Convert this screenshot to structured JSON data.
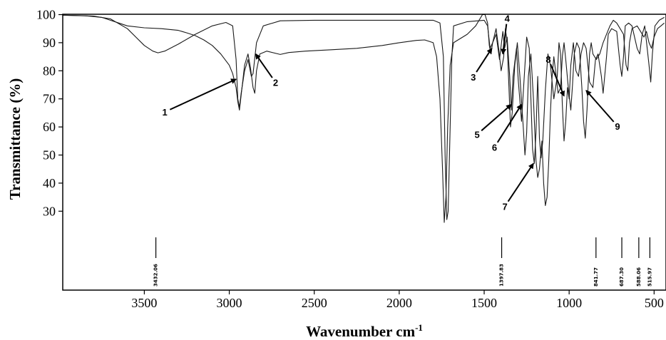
{
  "chart_data": {
    "type": "line",
    "title": "",
    "xlabel": "Wavenumber cm",
    "xlabel_sup": "-1",
    "ylabel": "Transmittance (%)",
    "xlim": [
      3980,
      430
    ],
    "ylim": [
      0,
      100
    ],
    "x_ticks": [
      3500,
      3000,
      2500,
      2000,
      1500,
      1000,
      500
    ],
    "y_ticks": [
      30,
      40,
      50,
      60,
      70,
      80,
      90,
      100
    ],
    "series": [
      {
        "values": [
          [
            3980,
            99.8
          ],
          [
            3800,
            99.5
          ],
          [
            3700,
            98.5
          ],
          [
            3600,
            95
          ],
          [
            3550,
            92
          ],
          [
            3500,
            89
          ],
          [
            3450,
            87
          ],
          [
            3420,
            86.4
          ],
          [
            3380,
            87
          ],
          [
            3300,
            89.5
          ],
          [
            3200,
            93
          ],
          [
            3100,
            96
          ],
          [
            3020,
            97.2
          ],
          [
            2980,
            96
          ],
          [
            2960,
            84
          ],
          [
            2950,
            70
          ],
          [
            2940,
            67
          ],
          [
            2930,
            72
          ],
          [
            2910,
            80
          ],
          [
            2890,
            84
          ],
          [
            2870,
            78
          ],
          [
            2860,
            79
          ],
          [
            2840,
            90
          ],
          [
            2800,
            96
          ],
          [
            2700,
            97.8
          ],
          [
            2500,
            98
          ],
          [
            2000,
            98
          ],
          [
            1800,
            98
          ],
          [
            1760,
            97
          ],
          [
            1740,
            85
          ],
          [
            1730,
            50
          ],
          [
            1720,
            27
          ],
          [
            1712,
            30
          ],
          [
            1700,
            60
          ],
          [
            1690,
            85
          ],
          [
            1680,
            96
          ],
          [
            1600,
            97.5
          ],
          [
            1500,
            98
          ],
          [
            1480,
            96
          ],
          [
            1465,
            88
          ],
          [
            1450,
            90
          ],
          [
            1430,
            93
          ],
          [
            1410,
            84
          ],
          [
            1390,
            94
          ],
          [
            1380,
            88
          ],
          [
            1365,
            92
          ],
          [
            1350,
            78
          ],
          [
            1340,
            66
          ],
          [
            1330,
            78
          ],
          [
            1310,
            88
          ],
          [
            1300,
            77
          ],
          [
            1280,
            62
          ],
          [
            1270,
            72
          ],
          [
            1250,
            92
          ],
          [
            1235,
            88
          ],
          [
            1215,
            52
          ],
          [
            1205,
            47
          ],
          [
            1195,
            58
          ],
          [
            1185,
            78
          ],
          [
            1175,
            56
          ],
          [
            1165,
            49
          ],
          [
            1155,
            55
          ],
          [
            1140,
            73
          ],
          [
            1125,
            86
          ],
          [
            1110,
            82
          ],
          [
            1090,
            70
          ],
          [
            1070,
            78
          ],
          [
            1060,
            90
          ],
          [
            1050,
            86
          ],
          [
            1040,
            68
          ],
          [
            1030,
            55
          ],
          [
            1020,
            62
          ],
          [
            1010,
            74
          ],
          [
            1000,
            70
          ],
          [
            990,
            82
          ],
          [
            975,
            90
          ],
          [
            960,
            80
          ],
          [
            945,
            78
          ],
          [
            930,
            86
          ],
          [
            915,
            90
          ],
          [
            900,
            88
          ],
          [
            880,
            76
          ],
          [
            860,
            74
          ],
          [
            845,
            84
          ],
          [
            830,
            86
          ],
          [
            810,
            78
          ],
          [
            800,
            72
          ],
          [
            780,
            85
          ],
          [
            770,
            93
          ],
          [
            750,
            95
          ],
          [
            720,
            94
          ],
          [
            700,
            82
          ],
          [
            690,
            78
          ],
          [
            680,
            85
          ],
          [
            670,
            96
          ],
          [
            650,
            97
          ],
          [
            630,
            96
          ],
          [
            600,
            88
          ],
          [
            585,
            86
          ],
          [
            570,
            93
          ],
          [
            555,
            96
          ],
          [
            530,
            82
          ],
          [
            520,
            76
          ],
          [
            510,
            86
          ],
          [
            495,
            96
          ],
          [
            470,
            98
          ],
          [
            440,
            99
          ]
        ]
      },
      {
        "values": [
          [
            3980,
            99.8
          ],
          [
            3850,
            99.6
          ],
          [
            3750,
            99
          ],
          [
            3700,
            98
          ],
          [
            3650,
            97
          ],
          [
            3600,
            96
          ],
          [
            3500,
            95.3
          ],
          [
            3400,
            95
          ],
          [
            3300,
            94.4
          ],
          [
            3250,
            93.5
          ],
          [
            3200,
            92.5
          ],
          [
            3150,
            91
          ],
          [
            3100,
            89
          ],
          [
            3050,
            86
          ],
          [
            3000,
            82
          ],
          [
            2980,
            79
          ],
          [
            2960,
            74
          ],
          [
            2950,
            69
          ],
          [
            2940,
            66
          ],
          [
            2925,
            74
          ],
          [
            2910,
            82
          ],
          [
            2890,
            86
          ],
          [
            2875,
            81
          ],
          [
            2860,
            74
          ],
          [
            2850,
            72
          ],
          [
            2840,
            80
          ],
          [
            2820,
            86
          ],
          [
            2780,
            87
          ],
          [
            2700,
            85.8
          ],
          [
            2650,
            86.5
          ],
          [
            2550,
            87
          ],
          [
            2400,
            87.5
          ],
          [
            2250,
            88
          ],
          [
            2100,
            89
          ],
          [
            2000,
            90
          ],
          [
            1900,
            90.8
          ],
          [
            1850,
            91
          ],
          [
            1800,
            90
          ],
          [
            1780,
            85
          ],
          [
            1760,
            70
          ],
          [
            1745,
            45
          ],
          [
            1735,
            26
          ],
          [
            1725,
            35
          ],
          [
            1715,
            60
          ],
          [
            1700,
            82
          ],
          [
            1680,
            90
          ],
          [
            1600,
            93
          ],
          [
            1550,
            96
          ],
          [
            1510,
            100
          ],
          [
            1495,
            100
          ],
          [
            1480,
            97
          ],
          [
            1470,
            89
          ],
          [
            1460,
            86
          ],
          [
            1450,
            90
          ],
          [
            1430,
            95
          ],
          [
            1415,
            88
          ],
          [
            1400,
            80
          ],
          [
            1385,
            85
          ],
          [
            1375,
            95
          ],
          [
            1365,
            90
          ],
          [
            1355,
            75
          ],
          [
            1345,
            60
          ],
          [
            1335,
            65
          ],
          [
            1320,
            82
          ],
          [
            1305,
            90
          ],
          [
            1290,
            78
          ],
          [
            1270,
            60
          ],
          [
            1260,
            50
          ],
          [
            1250,
            58
          ],
          [
            1240,
            78
          ],
          [
            1225,
            86
          ],
          [
            1210,
            70
          ],
          [
            1195,
            48
          ],
          [
            1185,
            42
          ],
          [
            1175,
            45
          ],
          [
            1160,
            55
          ],
          [
            1150,
            40
          ],
          [
            1140,
            32
          ],
          [
            1130,
            35
          ],
          [
            1120,
            48
          ],
          [
            1110,
            65
          ],
          [
            1100,
            78
          ],
          [
            1090,
            85
          ],
          [
            1080,
            80
          ],
          [
            1065,
            72
          ],
          [
            1050,
            74
          ],
          [
            1040,
            85
          ],
          [
            1030,
            90
          ],
          [
            1020,
            84
          ],
          [
            1005,
            74
          ],
          [
            990,
            66
          ],
          [
            980,
            75
          ],
          [
            970,
            86
          ],
          [
            955,
            90
          ],
          [
            940,
            88
          ],
          [
            925,
            74
          ],
          [
            915,
            62
          ],
          [
            905,
            56
          ],
          [
            895,
            66
          ],
          [
            880,
            86
          ],
          [
            870,
            90
          ],
          [
            860,
            86
          ],
          [
            840,
            84
          ],
          [
            820,
            86
          ],
          [
            800,
            90
          ],
          [
            780,
            93
          ],
          [
            760,
            96
          ],
          [
            740,
            98
          ],
          [
            720,
            97
          ],
          [
            700,
            95
          ],
          [
            680,
            93
          ],
          [
            665,
            82
          ],
          [
            655,
            80
          ],
          [
            645,
            90
          ],
          [
            630,
            95
          ],
          [
            600,
            96
          ],
          [
            580,
            94
          ],
          [
            560,
            92
          ],
          [
            545,
            94
          ],
          [
            530,
            90
          ],
          [
            515,
            88
          ],
          [
            500,
            92
          ],
          [
            480,
            95
          ],
          [
            460,
            96
          ],
          [
            440,
            97
          ]
        ]
      }
    ],
    "annotations": [
      {
        "label": "1",
        "target": [
          2960,
          77
        ]
      },
      {
        "label": "2",
        "target": [
          2845,
          86
        ]
      },
      {
        "label": "3",
        "target": [
          1455,
          88
        ]
      },
      {
        "label": "4",
        "target": [
          1390,
          86
        ]
      },
      {
        "label": "5",
        "target": [
          1340,
          68
        ]
      },
      {
        "label": "6",
        "target": [
          1280,
          68
        ]
      },
      {
        "label": "7",
        "target": [
          1210,
          47
        ]
      },
      {
        "label": "8",
        "target": [
          1030,
          71
        ]
      },
      {
        "label": "9",
        "target": [
          900,
          73
        ]
      }
    ],
    "peak_list": [
      {
        "x": 3432,
        "label": "3432.06"
      },
      {
        "x": 1397,
        "label": "1397.83"
      },
      {
        "x": 842,
        "label": "841.77"
      },
      {
        "x": 690,
        "label": "687.30"
      },
      {
        "x": 590,
        "label": "588.06"
      },
      {
        "x": 525,
        "label": "515.97"
      }
    ]
  }
}
